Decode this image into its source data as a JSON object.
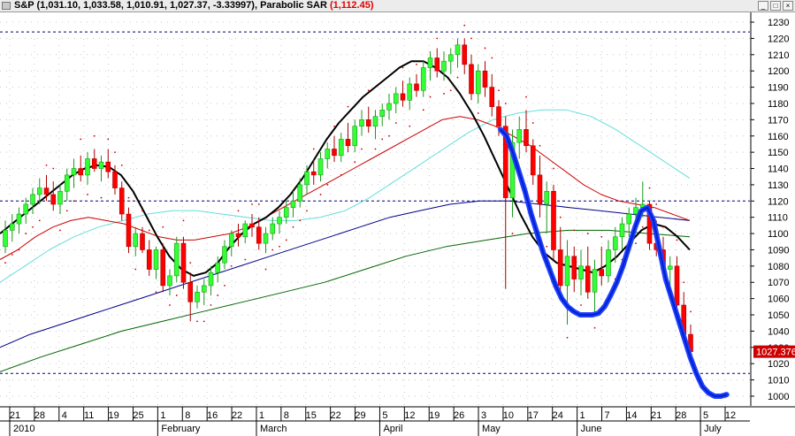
{
  "window": {
    "symbol": "S&P",
    "ohlc": "(1,031.10, 1,033.58, 1,010.91, 1,027.37, -3.33997)",
    "indicator": "Parabolic SAR",
    "indicator_value": "(1,112.45)",
    "buttons": [
      "_",
      "□",
      "×"
    ]
  },
  "colors": {
    "up": "#33ff33",
    "down": "#ff0000",
    "sar": "#cc0000",
    "ma_fast": "#000000",
    "ma_red": "#cc0000",
    "ma_cyan": "#66dddd",
    "ma_blue": "#00008b",
    "ma_green": "#006400",
    "blue_line": "#1f3fff",
    "hline": "#000080",
    "price_box": "#cc0000"
  },
  "chart_data": {
    "type": "candlestick",
    "price_axis": {
      "min": 994,
      "max": 1236,
      "ticks": [
        1000,
        1010,
        1020,
        1030,
        1040,
        1050,
        1060,
        1070,
        1080,
        1090,
        1100,
        1110,
        1120,
        1130,
        1140,
        1150,
        1160,
        1170,
        1180,
        1190,
        1200,
        1210,
        1220,
        1230
      ]
    },
    "last_price_label": "1027.376",
    "last_price": 1027.376,
    "hlines": [
      1224,
      1120,
      1014
    ],
    "date_ticks": [
      "21",
      "28",
      "4",
      "11",
      "19",
      "25",
      "1",
      "8",
      "16",
      "22",
      "1",
      "8",
      "15",
      "22",
      "29",
      "5",
      "12",
      "19",
      "26",
      "3",
      "10",
      "17",
      "24",
      "1",
      "7",
      "14",
      "21",
      "28",
      "5",
      "12"
    ],
    "month_labels": [
      "2010",
      "February",
      "March",
      "April",
      "May",
      "June",
      "July"
    ],
    "candles": [
      [
        1092,
        1108,
        1088,
        1102
      ],
      [
        1102,
        1112,
        1095,
        1106
      ],
      [
        1106,
        1116,
        1100,
        1112
      ],
      [
        1112,
        1122,
        1106,
        1118
      ],
      [
        1118,
        1128,
        1112,
        1124
      ],
      [
        1124,
        1134,
        1118,
        1128
      ],
      [
        1128,
        1136,
        1120,
        1124
      ],
      [
        1124,
        1132,
        1114,
        1118
      ],
      [
        1118,
        1130,
        1112,
        1126
      ],
      [
        1126,
        1140,
        1120,
        1136
      ],
      [
        1136,
        1146,
        1128,
        1140
      ],
      [
        1140,
        1148,
        1132,
        1136
      ],
      [
        1136,
        1150,
        1130,
        1146
      ],
      [
        1146,
        1152,
        1138,
        1140
      ],
      [
        1140,
        1148,
        1132,
        1144
      ],
      [
        1144,
        1152,
        1134,
        1138
      ],
      [
        1138,
        1142,
        1124,
        1128
      ],
      [
        1128,
        1132,
        1108,
        1112
      ],
      [
        1112,
        1116,
        1088,
        1092
      ],
      [
        1092,
        1104,
        1086,
        1100
      ],
      [
        1100,
        1104,
        1088,
        1090
      ],
      [
        1090,
        1096,
        1074,
        1078
      ],
      [
        1078,
        1092,
        1072,
        1090
      ],
      [
        1090,
        1094,
        1064,
        1068
      ],
      [
        1068,
        1078,
        1062,
        1074
      ],
      [
        1074,
        1098,
        1070,
        1094
      ],
      [
        1094,
        1098,
        1066,
        1070
      ],
      [
        1070,
        1076,
        1046,
        1058
      ],
      [
        1058,
        1068,
        1054,
        1064
      ],
      [
        1064,
        1072,
        1056,
        1068
      ],
      [
        1068,
        1080,
        1062,
        1076
      ],
      [
        1076,
        1086,
        1070,
        1082
      ],
      [
        1082,
        1096,
        1078,
        1092
      ],
      [
        1092,
        1102,
        1086,
        1100
      ],
      [
        1100,
        1106,
        1092,
        1098
      ],
      [
        1098,
        1108,
        1094,
        1106
      ],
      [
        1106,
        1112,
        1098,
        1104
      ],
      [
        1104,
        1110,
        1090,
        1094
      ],
      [
        1094,
        1104,
        1088,
        1100
      ],
      [
        1100,
        1110,
        1096,
        1106
      ],
      [
        1106,
        1114,
        1100,
        1110
      ],
      [
        1110,
        1120,
        1106,
        1116
      ],
      [
        1116,
        1126,
        1110,
        1120
      ],
      [
        1120,
        1134,
        1116,
        1130
      ],
      [
        1130,
        1142,
        1124,
        1138
      ],
      [
        1138,
        1146,
        1130,
        1136
      ],
      [
        1136,
        1150,
        1132,
        1146
      ],
      [
        1146,
        1156,
        1140,
        1152
      ],
      [
        1152,
        1160,
        1144,
        1148
      ],
      [
        1148,
        1162,
        1144,
        1158
      ],
      [
        1158,
        1168,
        1150,
        1154
      ],
      [
        1154,
        1170,
        1150,
        1166
      ],
      [
        1166,
        1176,
        1160,
        1170
      ],
      [
        1170,
        1178,
        1162,
        1166
      ],
      [
        1166,
        1176,
        1158,
        1172
      ],
      [
        1172,
        1180,
        1166,
        1176
      ],
      [
        1176,
        1186,
        1170,
        1180
      ],
      [
        1180,
        1190,
        1174,
        1186
      ],
      [
        1186,
        1194,
        1178,
        1182
      ],
      [
        1182,
        1196,
        1176,
        1192
      ],
      [
        1192,
        1198,
        1184,
        1188
      ],
      [
        1188,
        1206,
        1184,
        1202
      ],
      [
        1202,
        1212,
        1194,
        1208
      ],
      [
        1208,
        1214,
        1196,
        1200
      ],
      [
        1200,
        1212,
        1194,
        1206
      ],
      [
        1206,
        1214,
        1198,
        1210
      ],
      [
        1210,
        1220,
        1202,
        1216
      ],
      [
        1216,
        1220,
        1198,
        1204
      ],
      [
        1204,
        1210,
        1182,
        1186
      ],
      [
        1186,
        1204,
        1180,
        1200
      ],
      [
        1200,
        1206,
        1184,
        1190
      ],
      [
        1190,
        1198,
        1172,
        1178
      ],
      [
        1178,
        1182,
        1160,
        1166
      ],
      [
        1166,
        1172,
        1066,
        1122
      ],
      [
        1122,
        1164,
        1110,
        1156
      ],
      [
        1156,
        1172,
        1146,
        1164
      ],
      [
        1164,
        1176,
        1150,
        1154
      ],
      [
        1154,
        1158,
        1130,
        1136
      ],
      [
        1136,
        1148,
        1110,
        1118
      ],
      [
        1118,
        1132,
        1100,
        1126
      ],
      [
        1126,
        1130,
        1084,
        1090
      ],
      [
        1090,
        1104,
        1062,
        1068
      ],
      [
        1068,
        1096,
        1044,
        1086
      ],
      [
        1086,
        1092,
        1064,
        1072
      ],
      [
        1072,
        1090,
        1062,
        1080
      ],
      [
        1080,
        1092,
        1060,
        1064
      ],
      [
        1064,
        1084,
        1052,
        1078
      ],
      [
        1078,
        1092,
        1068,
        1074
      ],
      [
        1074,
        1096,
        1070,
        1090
      ],
      [
        1090,
        1104,
        1082,
        1098
      ],
      [
        1098,
        1110,
        1090,
        1106
      ],
      [
        1106,
        1116,
        1098,
        1112
      ],
      [
        1112,
        1122,
        1104,
        1116
      ],
      [
        1116,
        1132,
        1110,
        1118
      ],
      [
        1118,
        1120,
        1090,
        1094
      ],
      [
        1094,
        1108,
        1086,
        1090
      ],
      [
        1090,
        1098,
        1074,
        1078
      ],
      [
        1078,
        1086,
        1068,
        1080
      ],
      [
        1080,
        1086,
        1050,
        1056
      ],
      [
        1056,
        1064,
        1034,
        1038
      ],
      [
        1038,
        1044,
        1024,
        1027.4
      ]
    ],
    "series": {
      "ma_fast": [
        1100,
        1106,
        1112,
        1118,
        1124,
        1130,
        1136,
        1140,
        1142,
        1141,
        1136,
        1126,
        1112,
        1098,
        1086,
        1078,
        1074,
        1076,
        1082,
        1092,
        1100,
        1106,
        1110,
        1116,
        1124,
        1134,
        1146,
        1158,
        1168,
        1176,
        1184,
        1190,
        1196,
        1202,
        1206,
        1206,
        1202,
        1196,
        1186,
        1174,
        1160,
        1144,
        1128,
        1112,
        1098,
        1088,
        1082,
        1080,
        1078,
        1076,
        1080,
        1086,
        1094,
        1102,
        1106,
        1104,
        1098,
        1090
      ],
      "ma_red": [
        1084,
        1090,
        1098,
        1104,
        1108,
        1110,
        1108,
        1106,
        1102,
        1098,
        1096,
        1096,
        1098,
        1100,
        1104,
        1110,
        1116,
        1122,
        1128,
        1134,
        1140,
        1146,
        1152,
        1158,
        1164,
        1170,
        1172,
        1170,
        1166,
        1160,
        1154,
        1146,
        1138,
        1130,
        1124,
        1120,
        1118,
        1116,
        1112,
        1108
      ],
      "ma_cyan": [
        1070,
        1080,
        1090,
        1098,
        1104,
        1108,
        1112,
        1114,
        1114,
        1112,
        1110,
        1108,
        1108,
        1110,
        1114,
        1122,
        1132,
        1142,
        1152,
        1162,
        1170,
        1174,
        1176,
        1176,
        1172,
        1164,
        1154,
        1144,
        1134
      ],
      "ma_blue": [
        1030,
        1038,
        1044,
        1050,
        1056,
        1062,
        1068,
        1074,
        1080,
        1086,
        1092,
        1098,
        1104,
        1110,
        1114,
        1118,
        1120,
        1120,
        1118,
        1116,
        1114,
        1112,
        1110,
        1108
      ],
      "ma_green": [
        1015,
        1024,
        1032,
        1040,
        1046,
        1052,
        1058,
        1064,
        1070,
        1078,
        1086,
        1092,
        1096,
        1100,
        1102,
        1102,
        1100,
        1098
      ],
      "blue_line": [
        1164,
        1160,
        1150,
        1138,
        1126,
        1112,
        1100,
        1088,
        1078,
        1068,
        1060,
        1055,
        1052,
        1050,
        1050,
        1050,
        1051,
        1055,
        1062,
        1070,
        1080,
        1092,
        1104,
        1114,
        1116,
        1108,
        1090,
        1072,
        1060,
        1048,
        1036,
        1024,
        1014,
        1006,
        1002,
        1000,
        1000,
        1001
      ]
    }
  }
}
